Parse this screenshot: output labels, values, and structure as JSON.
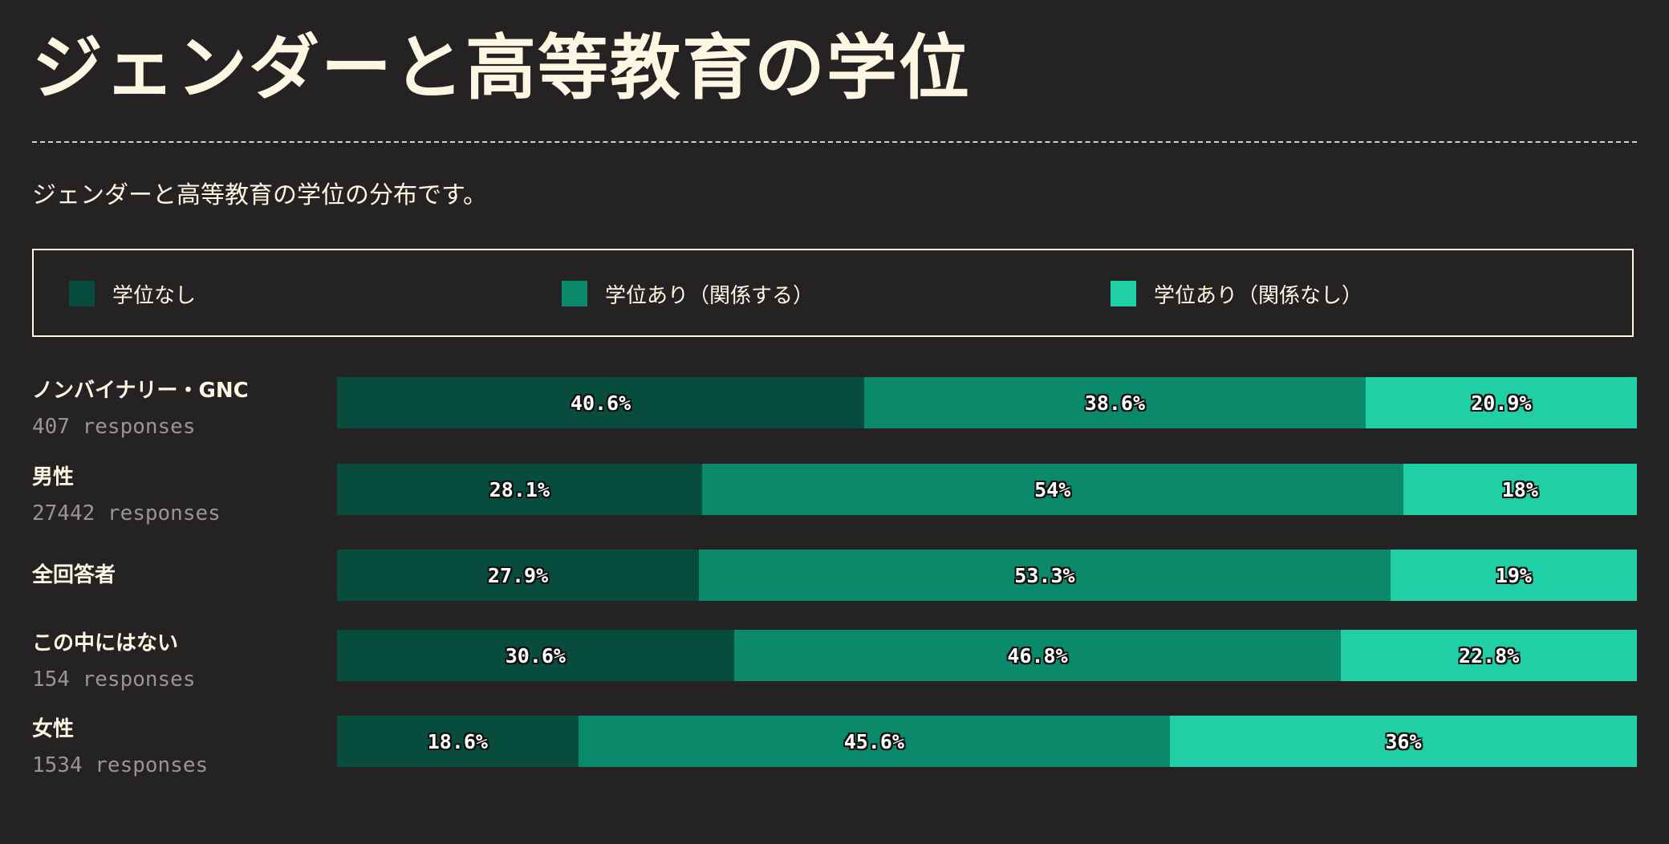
{
  "title": "ジェンダーと高等教育の学位",
  "subtitle": "ジェンダーと高等教育の学位の分布です。",
  "colors": {
    "background": "#252223",
    "no_degree": "#084c3d",
    "related": "#0b8a6b",
    "unrelated": "#21cfa7"
  },
  "chart_data": {
    "type": "bar",
    "orientation": "horizontal",
    "stacked": true,
    "title": "ジェンダーと高等教育の学位",
    "subtitle": "ジェンダーと高等教育の学位の分布です。",
    "legend_position": "top",
    "series": [
      {
        "name": "学位なし",
        "color": "#084c3d"
      },
      {
        "name": "学位あり（関係する）",
        "color": "#0b8a6b"
      },
      {
        "name": "学位あり（関係なし）",
        "color": "#21cfa7"
      }
    ],
    "categories": [
      {
        "label": "ノンバイナリー・GNC",
        "responses": "407 responses",
        "values": [
          40.6,
          38.6,
          20.9
        ],
        "value_labels": [
          "40.6%",
          "38.6%",
          "20.9%"
        ]
      },
      {
        "label": "男性",
        "responses": "27442 responses",
        "values": [
          28.1,
          54,
          18
        ],
        "value_labels": [
          "28.1%",
          "54%",
          "18%"
        ]
      },
      {
        "label": "全回答者",
        "responses": "",
        "values": [
          27.9,
          53.3,
          19
        ],
        "value_labels": [
          "27.9%",
          "53.3%",
          "19%"
        ]
      },
      {
        "label": "この中にはない",
        "responses": "154 responses",
        "values": [
          30.6,
          46.8,
          22.8
        ],
        "value_labels": [
          "30.6%",
          "46.8%",
          "22.8%"
        ]
      },
      {
        "label": "女性",
        "responses": "1534 responses",
        "values": [
          18.6,
          45.6,
          36
        ],
        "value_labels": [
          "18.6%",
          "45.6%",
          "36%"
        ]
      }
    ]
  }
}
